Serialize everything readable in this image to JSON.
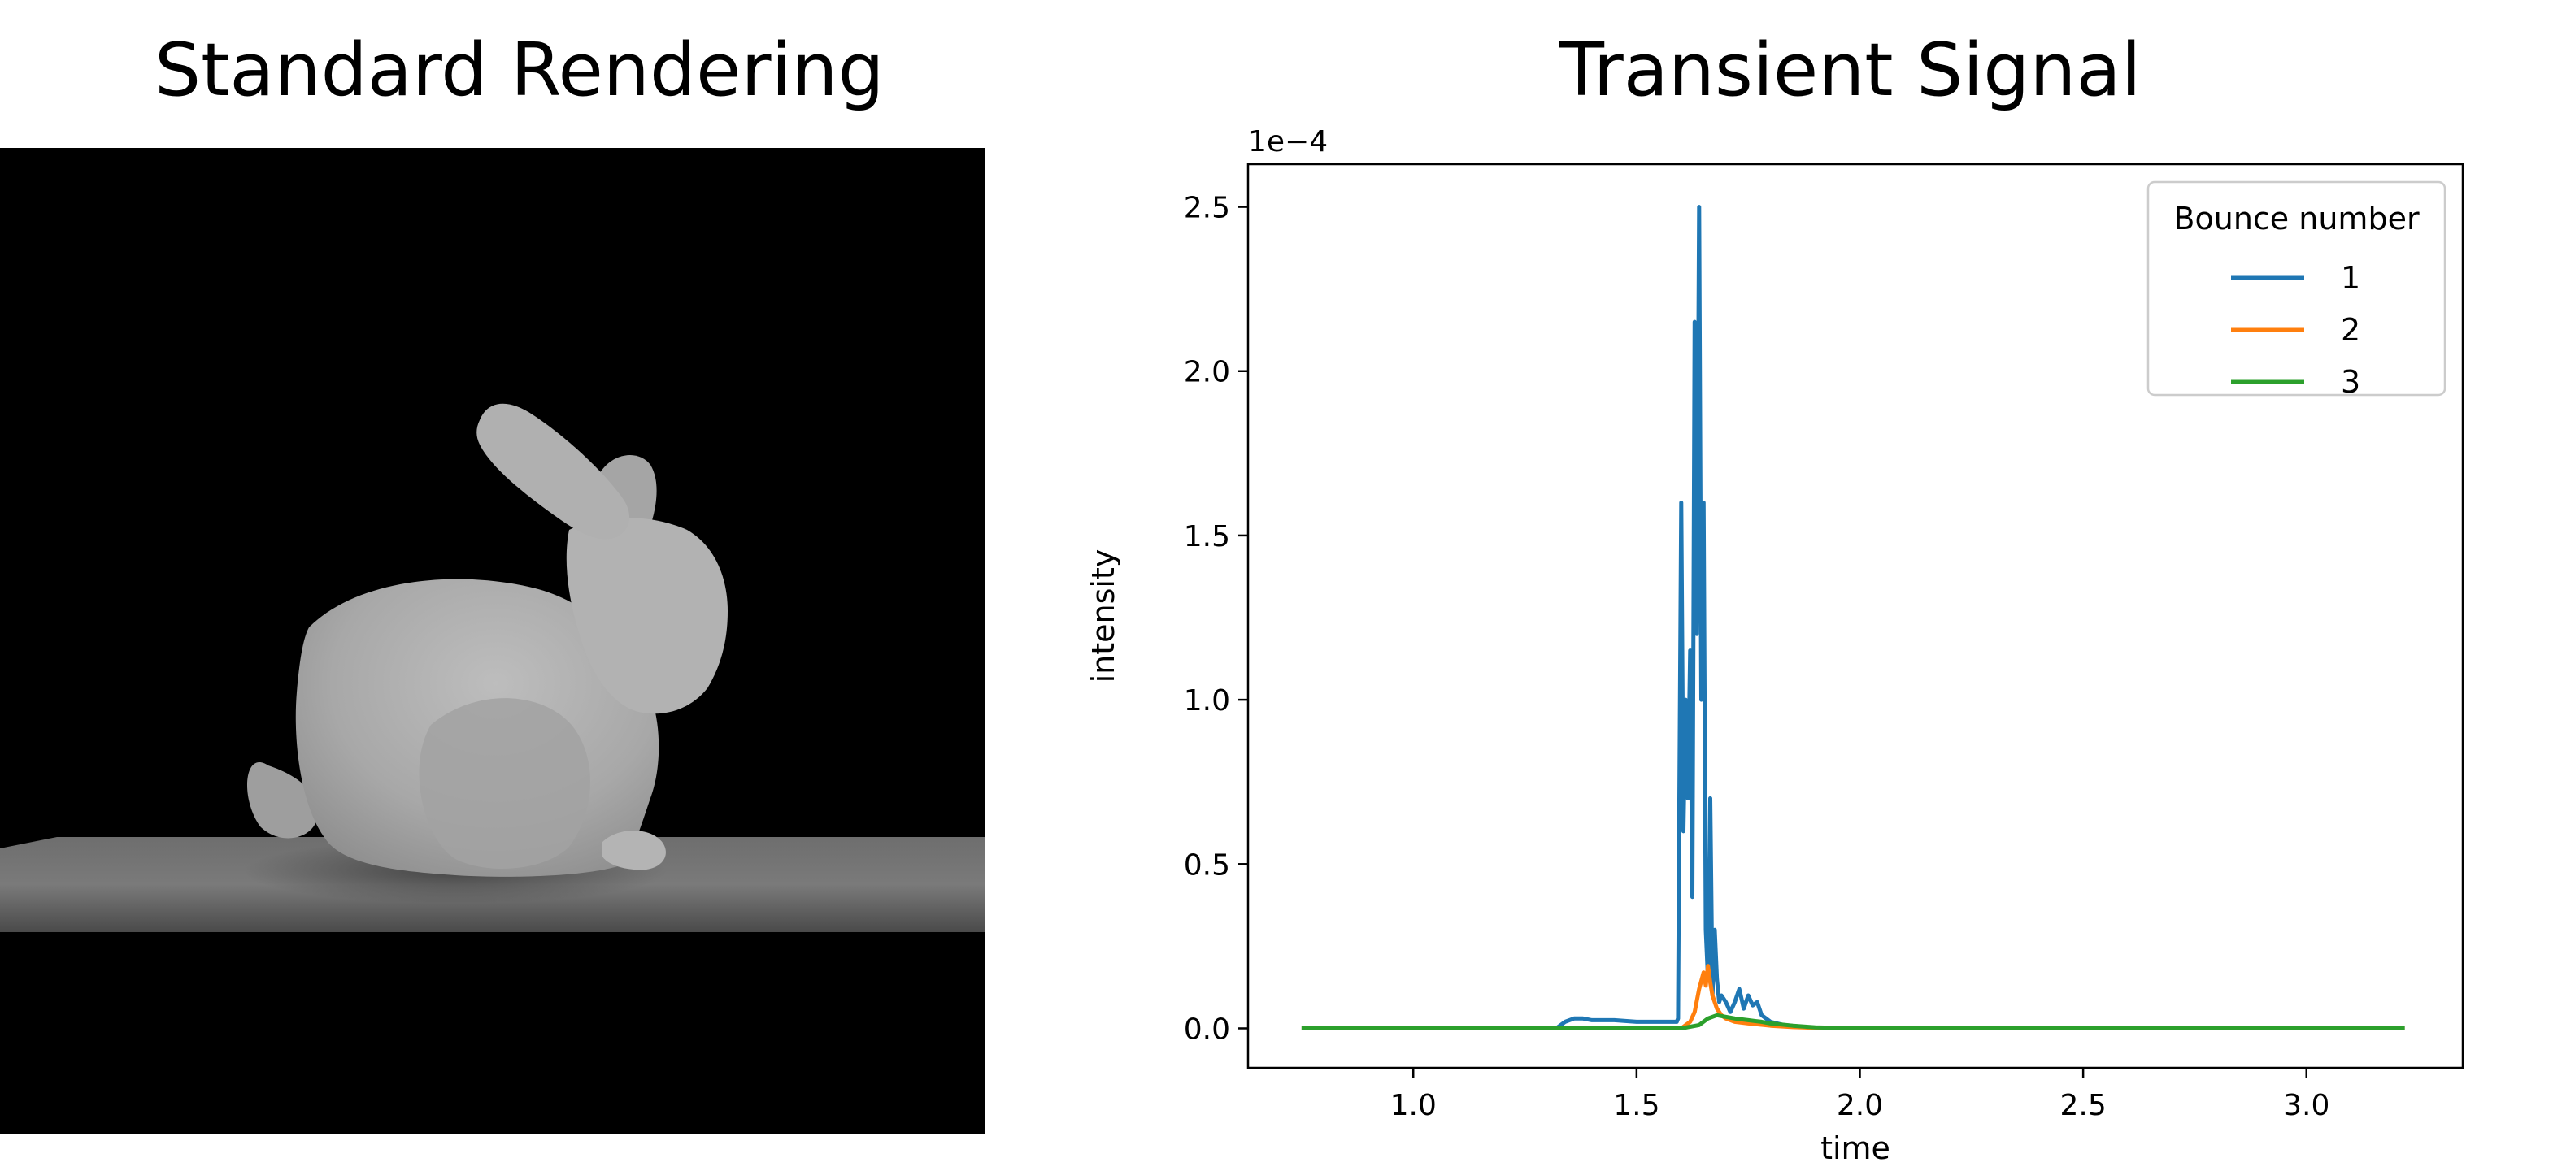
{
  "left_panel": {
    "title": "Standard Rendering",
    "image_subject": "bunny"
  },
  "right_panel": {
    "title": "Transient Signal"
  },
  "chart_data": {
    "type": "line",
    "title": "Transient Signal",
    "xlabel": "time",
    "ylabel": "intensity",
    "y_offset_label": "1e−4",
    "xlim": [
      0.63,
      3.35
    ],
    "ylim": [
      -0.12,
      2.63
    ],
    "y_scale_factor": 0.0001,
    "xticks": [
      1.0,
      1.5,
      2.0,
      2.5,
      3.0
    ],
    "xtick_labels": [
      "1.0",
      "1.5",
      "2.0",
      "2.5",
      "3.0"
    ],
    "yticks": [
      0.0,
      0.5,
      1.0,
      1.5,
      2.0,
      2.5
    ],
    "ytick_labels": [
      "0.0",
      "0.5",
      "1.0",
      "1.5",
      "2.0",
      "2.5"
    ],
    "legend": {
      "title": "Bounce number",
      "position": "upper right"
    },
    "series": [
      {
        "name": "1",
        "color": "#1f77b4",
        "x": [
          0.75,
          1.32,
          1.34,
          1.36,
          1.38,
          1.4,
          1.45,
          1.5,
          1.55,
          1.59,
          1.593,
          1.595,
          1.6,
          1.605,
          1.61,
          1.615,
          1.62,
          1.625,
          1.63,
          1.635,
          1.64,
          1.645,
          1.65,
          1.655,
          1.66,
          1.665,
          1.67,
          1.675,
          1.68,
          1.685,
          1.69,
          1.7,
          1.71,
          1.72,
          1.73,
          1.74,
          1.75,
          1.76,
          1.77,
          1.78,
          1.79,
          1.8,
          1.83,
          1.87,
          1.9,
          2.0,
          2.5,
          3.22
        ],
        "y": [
          0.0,
          0.0,
          0.02,
          0.03,
          0.03,
          0.025,
          0.025,
          0.02,
          0.02,
          0.02,
          0.03,
          0.5,
          1.6,
          0.6,
          1.0,
          0.7,
          1.15,
          0.4,
          2.15,
          1.2,
          2.5,
          1.0,
          1.6,
          0.3,
          0.15,
          0.7,
          0.1,
          0.3,
          0.15,
          0.08,
          0.1,
          0.08,
          0.05,
          0.08,
          0.12,
          0.06,
          0.1,
          0.07,
          0.08,
          0.04,
          0.03,
          0.02,
          0.01,
          0.005,
          0.0,
          0.0,
          0.0,
          0.0
        ]
      },
      {
        "name": "2",
        "color": "#ff7f0e",
        "x": [
          0.75,
          1.6,
          1.62,
          1.63,
          1.64,
          1.65,
          1.655,
          1.66,
          1.665,
          1.67,
          1.68,
          1.69,
          1.7,
          1.72,
          1.75,
          1.8,
          1.85,
          1.9,
          2.0,
          3.22
        ],
        "y": [
          0.0,
          0.0,
          0.02,
          0.05,
          0.12,
          0.17,
          0.13,
          0.19,
          0.14,
          0.1,
          0.06,
          0.04,
          0.03,
          0.02,
          0.015,
          0.008,
          0.004,
          0.002,
          0.0,
          0.0
        ],
        "notes": ""
      },
      {
        "name": "3",
        "color": "#2ca02c",
        "x": [
          0.75,
          1.6,
          1.64,
          1.66,
          1.68,
          1.7,
          1.72,
          1.75,
          1.78,
          1.8,
          1.85,
          1.9,
          2.0,
          3.22
        ],
        "y": [
          0.0,
          0.0,
          0.01,
          0.03,
          0.04,
          0.035,
          0.03,
          0.025,
          0.02,
          0.015,
          0.008,
          0.003,
          0.0,
          0.0
        ]
      }
    ]
  }
}
